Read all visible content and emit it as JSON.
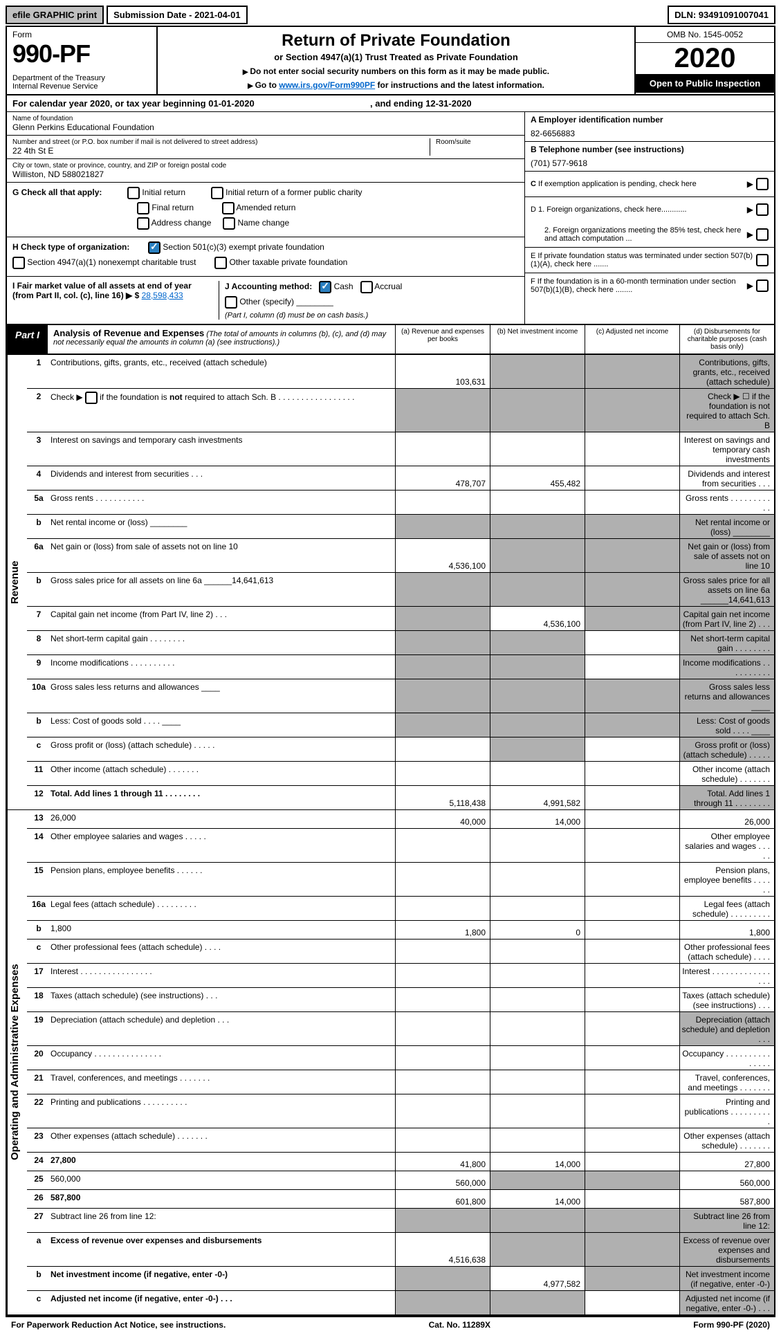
{
  "topbar": {
    "print": "efile GRAPHIC print",
    "submission": "Submission Date - 2021-04-01",
    "dln": "DLN: 93491091007041"
  },
  "header": {
    "form_label": "Form",
    "form_number": "990-PF",
    "dept": "Department of the Treasury\nInternal Revenue Service",
    "title": "Return of Private Foundation",
    "subtitle": "or Section 4947(a)(1) Trust Treated as Private Foundation",
    "instr1": "Do not enter social security numbers on this form as it may be made public.",
    "instr2_pre": "Go to ",
    "instr2_link": "www.irs.gov/Form990PF",
    "instr2_post": " for instructions and the latest information.",
    "omb": "OMB No. 1545-0052",
    "year": "2020",
    "inspection": "Open to Public Inspection"
  },
  "calendar": {
    "pre": "For calendar year 2020, or tax year beginning ",
    "begin": "01-01-2020",
    "mid": " , and ending ",
    "end": "12-31-2020"
  },
  "info": {
    "name_lbl": "Name of foundation",
    "name": "Glenn Perkins Educational Foundation",
    "addr_lbl": "Number and street (or P.O. box number if mail is not delivered to street address)",
    "addr": "22 4th St E",
    "room_lbl": "Room/suite",
    "city_lbl": "City or town, state or province, country, and ZIP or foreign postal code",
    "city": "Williston, ND  588021827",
    "a_lbl": "A Employer identification number",
    "a_val": "82-6656883",
    "b_lbl": "B Telephone number (see instructions)",
    "b_val": "(701) 577-9618",
    "c_lbl": "C  If exemption application is pending, check here",
    "d1": "D 1. Foreign organizations, check here............",
    "d2": "2. Foreign organizations meeting the 85% test, check here and attach computation ...",
    "e": "E  If private foundation status was terminated under section 507(b)(1)(A), check here .......",
    "f": "F  If the foundation is in a 60-month termination under section 507(b)(1)(B), check here ........"
  },
  "g": {
    "label": "G Check all that apply:",
    "initial": "Initial return",
    "initial_former": "Initial return of a former public charity",
    "final": "Final return",
    "amended": "Amended return",
    "address": "Address change",
    "name_chg": "Name change"
  },
  "h": {
    "label": "H Check type of organization:",
    "sec501": "Section 501(c)(3) exempt private foundation",
    "sec4947": "Section 4947(a)(1) nonexempt charitable trust",
    "other": "Other taxable private foundation"
  },
  "i": {
    "label": "I Fair market value of all assets at end of year (from Part II, col. (c), line 16) ▶ $",
    "value": "28,598,433"
  },
  "j": {
    "label": "J Accounting method:",
    "cash": "Cash",
    "accrual": "Accrual",
    "other": "Other (specify)",
    "note": "(Part I, column (d) must be on cash basis.)"
  },
  "part1": {
    "label": "Part I",
    "title": "Analysis of Revenue and Expenses",
    "note": " (The total of amounts in columns (b), (c), and (d) may not necessarily equal the amounts in column (a) (see instructions).)",
    "col_a": "(a)    Revenue and expenses per books",
    "col_b": "(b)   Net investment income",
    "col_c": "(c)   Adjusted net income",
    "col_d": "(d)   Disbursements for charitable purposes (cash basis only)"
  },
  "revenue_label": "Revenue",
  "expenses_label": "Operating and Administrative Expenses",
  "rows": [
    {
      "n": "1",
      "d": "Contributions, gifts, grants, etc., received (attach schedule)",
      "a": "103,631",
      "grey": [
        "b",
        "c",
        "d"
      ]
    },
    {
      "n": "2",
      "d": "Check ▶ ☐ if the foundation is not required to attach Sch. B",
      "grey": [
        "a",
        "b",
        "c",
        "d"
      ],
      "html": true
    },
    {
      "n": "3",
      "d": "Interest on savings and temporary cash investments"
    },
    {
      "n": "4",
      "d": "Dividends and interest from securities   .   .   .",
      "a": "478,707",
      "b": "455,482"
    },
    {
      "n": "5a",
      "d": "Gross rents      .   .   .   .   .   .   .   .   .   .   ."
    },
    {
      "n": "b",
      "d": "Net rental income or (loss)  ________",
      "grey": [
        "a",
        "b",
        "c",
        "d"
      ]
    },
    {
      "n": "6a",
      "d": "Net gain or (loss) from sale of assets not on line 10",
      "a": "4,536,100",
      "grey": [
        "b",
        "c",
        "d"
      ]
    },
    {
      "n": "b",
      "d": "Gross sales price for all assets on line 6a  ______14,641,613",
      "grey": [
        "a",
        "b",
        "c",
        "d"
      ]
    },
    {
      "n": "7",
      "d": "Capital gain net income (from Part IV, line 2)    .   .   .",
      "b": "4,536,100",
      "grey": [
        "a",
        "c",
        "d"
      ]
    },
    {
      "n": "8",
      "d": "Net short-term capital gain   .   .   .   .   .   .   .   .",
      "grey": [
        "a",
        "b",
        "d"
      ]
    },
    {
      "n": "9",
      "d": "Income modifications   .   .   .   .   .   .   .   .   .   .",
      "grey": [
        "a",
        "b",
        "d"
      ]
    },
    {
      "n": "10a",
      "d": "Gross sales less returns and allowances  ____",
      "grey": [
        "a",
        "b",
        "c",
        "d"
      ]
    },
    {
      "n": "b",
      "d": "Less: Cost of goods sold     .   .   .   .   ____",
      "grey": [
        "a",
        "b",
        "c",
        "d"
      ]
    },
    {
      "n": "c",
      "d": "Gross profit or (loss) (attach schedule)    .   .   .   .   .",
      "grey": [
        "b",
        "d"
      ]
    },
    {
      "n": "11",
      "d": "Other income (attach schedule)    .   .   .   .   .   .   ."
    },
    {
      "n": "12",
      "d": "Total. Add lines 1 through 11    .   .   .   .   .   .   .   .",
      "bold": true,
      "a": "5,118,438",
      "b": "4,991,582",
      "grey": [
        "d"
      ]
    }
  ],
  "exp_rows": [
    {
      "n": "13",
      "d": "26,000",
      "a": "40,000",
      "b": "14,000"
    },
    {
      "n": "14",
      "d": "Other employee salaries and wages    .   .   .   .   ."
    },
    {
      "n": "15",
      "d": "Pension plans, employee benefits    .   .   .   .   .   ."
    },
    {
      "n": "16a",
      "d": "Legal fees (attach schedule)   .   .   .   .   .   .   .   .   ."
    },
    {
      "n": "b",
      "d": "1,800",
      "a": "1,800",
      "b": "0"
    },
    {
      "n": "c",
      "d": "Other professional fees (attach schedule)    .   .   .   ."
    },
    {
      "n": "17",
      "d": "Interest   .   .   .   .   .   .   .   .   .   .   .   .   .   .   .   ."
    },
    {
      "n": "18",
      "d": "Taxes (attach schedule) (see instructions)     .   .   ."
    },
    {
      "n": "19",
      "d": "Depreciation (attach schedule) and depletion    .   .   .",
      "grey": [
        "d"
      ]
    },
    {
      "n": "20",
      "d": "Occupancy   .   .   .   .   .   .   .   .   .   .   .   .   .   .   ."
    },
    {
      "n": "21",
      "d": "Travel, conferences, and meetings   .   .   .   .   .   .   ."
    },
    {
      "n": "22",
      "d": "Printing and publications   .   .   .   .   .   .   .   .   .   ."
    },
    {
      "n": "23",
      "d": "Other expenses (attach schedule)   .   .   .   .   .   .   ."
    },
    {
      "n": "24",
      "d": "27,800",
      "bold": true,
      "a": "41,800",
      "b": "14,000"
    },
    {
      "n": "25",
      "d": "560,000",
      "a": "560,000",
      "grey": [
        "b",
        "c"
      ]
    },
    {
      "n": "26",
      "d": "587,800",
      "bold": true,
      "a": "601,800",
      "b": "14,000"
    },
    {
      "n": "27",
      "d": "Subtract line 26 from line 12:",
      "grey": [
        "a",
        "b",
        "c",
        "d"
      ]
    },
    {
      "n": "a",
      "d": "Excess of revenue over expenses and disbursements",
      "bold": true,
      "a": "4,516,638",
      "grey": [
        "b",
        "c",
        "d"
      ]
    },
    {
      "n": "b",
      "d": "Net investment income (if negative, enter -0-)",
      "bold": true,
      "b": "4,977,582",
      "grey": [
        "a",
        "c",
        "d"
      ]
    },
    {
      "n": "c",
      "d": "Adjusted net income (if negative, enter -0-)  .   .   .",
      "bold": true,
      "grey": [
        "a",
        "b",
        "d"
      ]
    }
  ],
  "footer": {
    "left": "For Paperwork Reduction Act Notice, see instructions.",
    "mid": "Cat. No. 11289X",
    "right": "Form 990-PF (2020)"
  }
}
